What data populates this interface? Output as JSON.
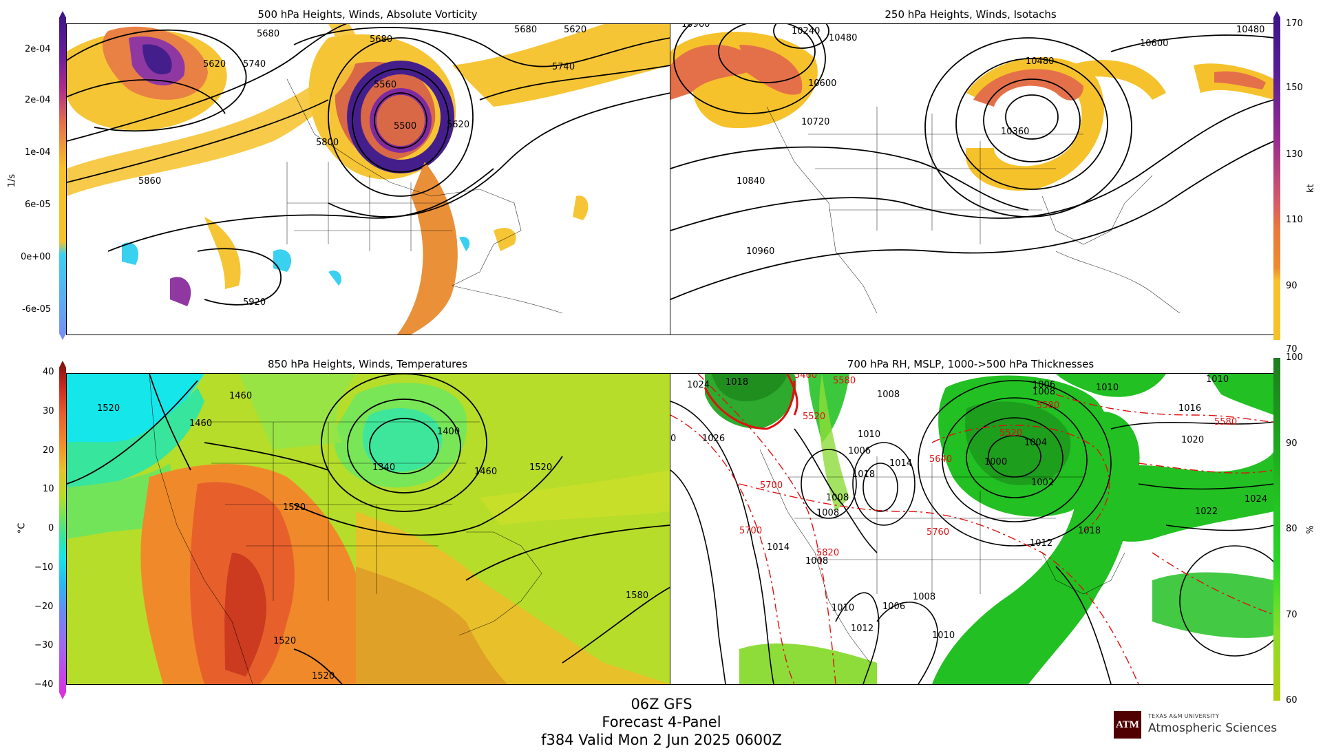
{
  "panels": {
    "vorticity": {
      "title": "500 hPa Heights, Winds, Absolute Vorticity",
      "labels": [
        "5680",
        "5620",
        "5740",
        "5680",
        "5560",
        "5500",
        "5620",
        "5680",
        "5620",
        "5740",
        "5800",
        "5860",
        "5920"
      ]
    },
    "isotachs": {
      "title": "250 hPa Heights, Winds, Isotachs",
      "labels": [
        "10240",
        "10480",
        "10600",
        "10720",
        "10480",
        "10360",
        "10600",
        "10480",
        "10840",
        "10960"
      ]
    },
    "temps": {
      "title": "850 hPa Heights, Winds, Temperatures",
      "labels": [
        "1520",
        "1460",
        "1460",
        "1400",
        "1340",
        "1460",
        "1520",
        "1520",
        "1580",
        "1520",
        "1520"
      ]
    },
    "rh": {
      "title": "700 hPa RH, MSLP, 1000->500 hPa Thicknesses",
      "black_labels": [
        "1018",
        "1024",
        "1026",
        "1008",
        "1010",
        "1014",
        "1008",
        "1006",
        "1000",
        "1004",
        "1002",
        "1010",
        "1016",
        "1020",
        "1010",
        "1018",
        "1008",
        "1006",
        "1008",
        "1014",
        "1012",
        "1008",
        "1010",
        "1012",
        "1006",
        "1008",
        "1010",
        "1012",
        "1018",
        "1022",
        "1024",
        "0"
      ],
      "red_labels": [
        "5460",
        "5580",
        "5520",
        "5580",
        "5520",
        "5640",
        "5700",
        "5700",
        "5820",
        "5760",
        "5580"
      ]
    }
  },
  "colorbars": {
    "vorticity": {
      "unit": "1/s",
      "ticks": [
        "2e-04",
        "2e-04",
        "1e-04",
        "6e-05",
        "0e+00",
        "-6e-05"
      ]
    },
    "isotachs": {
      "unit": "kt",
      "ticks": [
        "170",
        "150",
        "130",
        "110",
        "90",
        "70"
      ]
    },
    "temps": {
      "unit": "°C",
      "ticks": [
        "40",
        "30",
        "20",
        "10",
        "0",
        "−10",
        "−20",
        "−30",
        "−40"
      ]
    },
    "rh": {
      "unit": "%",
      "ticks": [
        "100",
        "90",
        "80",
        "70",
        "60"
      ]
    }
  },
  "footer": {
    "line1": "06Z GFS",
    "line2": "Forecast 4-Panel",
    "line3": "f384 Valid Mon 2 Jun 2025 0600Z"
  },
  "logo": {
    "university": "TEXAS A&M UNIVERSITY",
    "department": "Atmospheric Sciences",
    "mark": "ATM",
    "color": "#500000"
  }
}
